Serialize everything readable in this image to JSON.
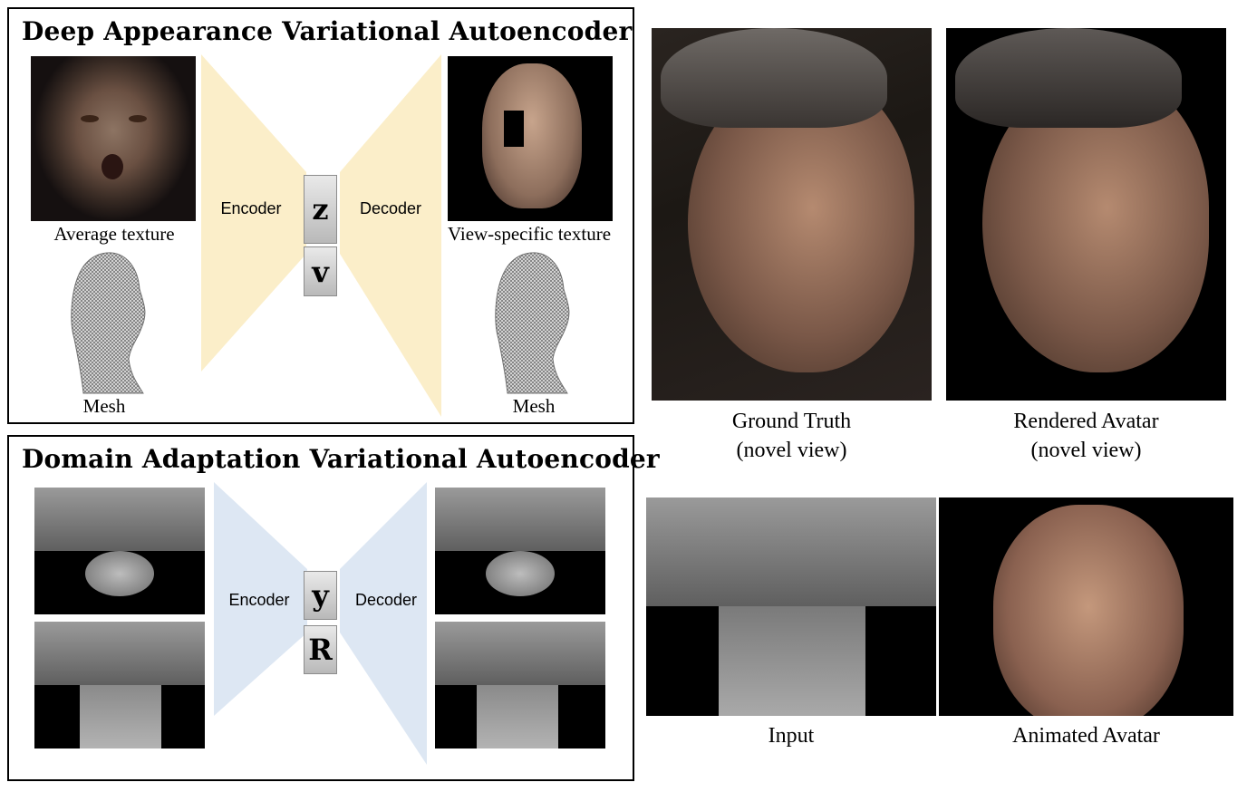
{
  "top_panel": {
    "title": "Deep Appearance Variational Autoencoder",
    "label_average_texture": "Average texture",
    "label_encoder": "Encoder",
    "label_decoder": "Decoder",
    "label_view_specific_texture": "View-specific texture",
    "label_mesh_left": "Mesh",
    "label_mesh_right": "Mesh",
    "latent_z": "z",
    "latent_v": "v"
  },
  "bottom_panel": {
    "title": "Domain Adaptation Variational Autoencoder",
    "label_encoder": "Encoder",
    "label_decoder": "Decoder",
    "latent_y": "y",
    "latent_r": "R"
  },
  "right_side": {
    "ground_truth_line1": "Ground Truth",
    "ground_truth_line2": "(novel view)",
    "rendered_line1": "Rendered Avatar",
    "rendered_line2": "(novel view)",
    "input_label": "Input",
    "animated_label": "Animated Avatar"
  },
  "colors": {
    "encoder_top": "#fbeec9",
    "encoder_bottom": "#dde7f3",
    "latent_box": "#cccccc"
  }
}
